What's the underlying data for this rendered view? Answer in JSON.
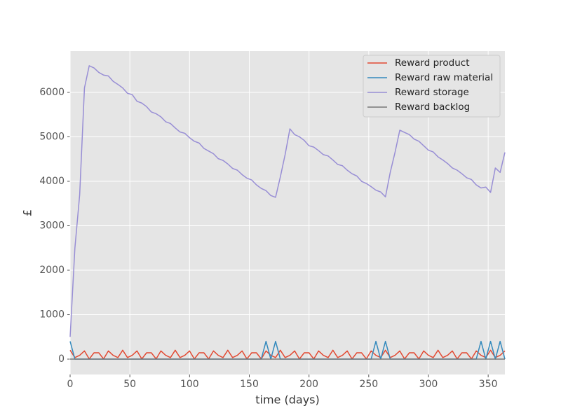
{
  "chart_data": {
    "type": "line",
    "xlabel": "time (days)",
    "ylabel": "£",
    "x": [
      0,
      4,
      8,
      12,
      16,
      20,
      24,
      28,
      32,
      36,
      40,
      44,
      48,
      52,
      56,
      60,
      64,
      68,
      72,
      76,
      80,
      84,
      88,
      92,
      96,
      100,
      104,
      108,
      112,
      116,
      120,
      124,
      128,
      132,
      136,
      140,
      144,
      148,
      152,
      156,
      160,
      164,
      168,
      172,
      176,
      180,
      184,
      188,
      192,
      196,
      200,
      204,
      208,
      212,
      216,
      220,
      224,
      228,
      232,
      236,
      240,
      244,
      248,
      252,
      256,
      260,
      264,
      268,
      272,
      276,
      280,
      284,
      288,
      292,
      296,
      300,
      304,
      308,
      312,
      316,
      320,
      324,
      328,
      332,
      336,
      340,
      344,
      348,
      352,
      356,
      360,
      364
    ],
    "series": [
      {
        "name": "Reward product",
        "color": "#E24A33",
        "values": [
          200,
          35,
          86,
          184,
          4,
          142,
          142,
          4,
          184,
          86,
          35,
          200,
          35,
          86,
          184,
          4,
          142,
          142,
          4,
          184,
          86,
          35,
          200,
          35,
          86,
          184,
          4,
          142,
          142,
          4,
          184,
          86,
          35,
          200,
          35,
          86,
          184,
          4,
          142,
          142,
          4,
          184,
          86,
          35,
          200,
          35,
          86,
          184,
          4,
          142,
          142,
          4,
          184,
          86,
          35,
          200,
          35,
          86,
          184,
          4,
          142,
          142,
          4,
          184,
          86,
          35,
          200,
          35,
          86,
          184,
          4,
          142,
          142,
          4,
          184,
          86,
          35,
          200,
          35,
          86,
          184,
          4,
          142,
          142,
          4,
          184,
          86,
          35,
          200,
          35,
          86,
          184
        ]
      },
      {
        "name": "Reward raw material",
        "color": "#348ABD",
        "values": [
          400,
          0,
          0,
          0,
          0,
          0,
          0,
          0,
          0,
          0,
          0,
          0,
          0,
          0,
          0,
          0,
          0,
          0,
          0,
          0,
          0,
          0,
          0,
          0,
          0,
          0,
          0,
          0,
          0,
          0,
          0,
          0,
          0,
          0,
          0,
          0,
          0,
          0,
          0,
          0,
          0,
          400,
          0,
          400,
          0,
          0,
          0,
          0,
          0,
          0,
          0,
          0,
          0,
          0,
          0,
          0,
          0,
          0,
          0,
          0,
          0,
          0,
          0,
          0,
          400,
          0,
          400,
          0,
          0,
          0,
          0,
          0,
          0,
          0,
          0,
          0,
          0,
          0,
          0,
          0,
          0,
          0,
          0,
          0,
          0,
          0,
          400,
          0,
          400,
          0,
          400,
          0
        ]
      },
      {
        "name": "Reward storage",
        "color": "#988ED5",
        "values": [
          500,
          2500,
          3700,
          6100,
          6600,
          6550,
          6450,
          6390,
          6370,
          6250,
          6180,
          6100,
          5980,
          5950,
          5800,
          5760,
          5680,
          5560,
          5520,
          5450,
          5340,
          5300,
          5200,
          5110,
          5080,
          4980,
          4900,
          4860,
          4740,
          4680,
          4620,
          4510,
          4470,
          4390,
          4290,
          4250,
          4150,
          4070,
          4030,
          3920,
          3840,
          3790,
          3680,
          3640,
          4100,
          4600,
          5180,
          5050,
          5000,
          4920,
          4800,
          4770,
          4690,
          4600,
          4570,
          4480,
          4380,
          4350,
          4250,
          4170,
          4120,
          4000,
          3950,
          3880,
          3800,
          3760,
          3650,
          4200,
          4650,
          5150,
          5100,
          5050,
          4950,
          4900,
          4800,
          4700,
          4660,
          4550,
          4480,
          4400,
          4300,
          4250,
          4170,
          4080,
          4040,
          3920,
          3850,
          3870,
          3750,
          4300,
          4200,
          4650
        ]
      },
      {
        "name": "Reward backlog",
        "color": "#777777",
        "values": [
          0,
          0,
          0,
          0,
          0,
          0,
          0,
          0,
          0,
          0,
          0,
          0,
          0,
          0,
          0,
          0,
          0,
          0,
          0,
          0,
          0,
          0,
          0,
          0,
          0,
          0,
          0,
          0,
          0,
          0,
          0,
          0,
          0,
          0,
          0,
          0,
          0,
          0,
          0,
          0,
          0,
          0,
          0,
          0,
          0,
          0,
          0,
          0,
          0,
          0,
          0,
          0,
          0,
          0,
          0,
          0,
          0,
          0,
          0,
          0,
          0,
          0,
          0,
          0,
          0,
          0,
          0,
          0,
          0,
          0,
          0,
          0,
          0,
          0,
          0,
          0,
          0,
          0,
          0,
          0,
          0,
          0,
          0,
          0,
          0,
          0,
          0,
          0,
          0,
          0,
          0,
          0
        ]
      }
    ],
    "xlim": [
      0,
      364
    ],
    "ylim": [
      -346,
      6929
    ],
    "xticks": [
      0,
      50,
      100,
      150,
      200,
      250,
      300,
      350
    ],
    "yticks": [
      0,
      1000,
      2000,
      3000,
      4000,
      5000,
      6000
    ],
    "grid": true,
    "legend": "upper right"
  }
}
